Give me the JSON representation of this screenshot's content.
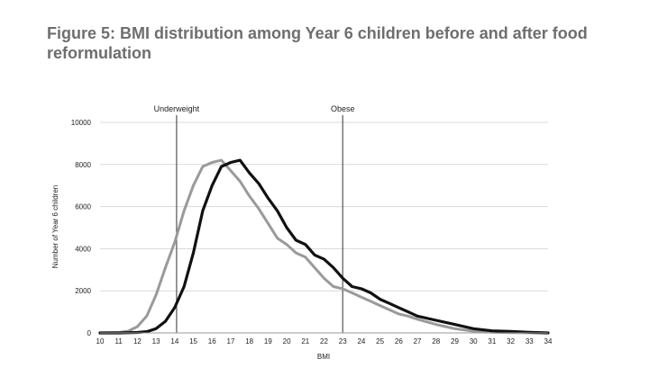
{
  "chart_data": {
    "type": "line",
    "title": "Figure 5: BMI distribution among Year 6 children before and after food reformulation",
    "xlabel": "BMI",
    "ylabel": "Number of Year 6 children",
    "xlim": [
      10,
      34
    ],
    "ylim": [
      0,
      10000
    ],
    "xticks": [
      "10",
      "11",
      "12",
      "13",
      "14",
      "15",
      "16",
      "17",
      "18",
      "19",
      "20",
      "21",
      "22",
      "23",
      "24",
      "25",
      "26",
      "27",
      "28",
      "29",
      "30",
      "31",
      "32",
      "33",
      "34"
    ],
    "yticks": [
      "0",
      "2000",
      "4000",
      "6000",
      "8000",
      "10000"
    ],
    "grid": true,
    "reference_lines": [
      {
        "label": "Underweight",
        "x": 14.1
      },
      {
        "label": "Obese",
        "x": 23.0
      }
    ],
    "series": [
      {
        "color": "#9a9a9a",
        "x": [
          10,
          11,
          11.5,
          12,
          12.5,
          13,
          13.5,
          14,
          14.5,
          15,
          15.5,
          16,
          16.5,
          17,
          17.5,
          18,
          18.5,
          19,
          19.5,
          20,
          20.5,
          21,
          21.5,
          22,
          22.5,
          23,
          23.5,
          24,
          24.5,
          25,
          25.5,
          26,
          26.5,
          27,
          28,
          29,
          30,
          31,
          32,
          33,
          34
        ],
        "values": [
          0,
          20,
          80,
          300,
          800,
          1800,
          3100,
          4300,
          5800,
          7000,
          7900,
          8100,
          8200,
          7700,
          7200,
          6500,
          5900,
          5200,
          4500,
          4200,
          3800,
          3600,
          3100,
          2600,
          2200,
          2100,
          1900,
          1700,
          1500,
          1300,
          1100,
          900,
          800,
          650,
          400,
          200,
          80,
          30,
          10,
          5,
          0
        ]
      },
      {
        "color": "#111111",
        "x": [
          10,
          11,
          12,
          12.5,
          13,
          13.5,
          14,
          14.5,
          15,
          15.5,
          16,
          16.5,
          17,
          17.5,
          18,
          18.5,
          19,
          19.5,
          20,
          20.5,
          21,
          21.5,
          22,
          22.5,
          23,
          23.5,
          24,
          24.5,
          25,
          25.5,
          26,
          26.5,
          27,
          28,
          29,
          30,
          31,
          32,
          33,
          34
        ],
        "values": [
          0,
          0,
          20,
          60,
          200,
          550,
          1200,
          2200,
          3800,
          5800,
          7000,
          7900,
          8100,
          8200,
          7600,
          7100,
          6400,
          5800,
          5000,
          4400,
          4200,
          3700,
          3500,
          3100,
          2600,
          2200,
          2100,
          1900,
          1600,
          1400,
          1200,
          1000,
          800,
          600,
          400,
          200,
          100,
          70,
          30,
          0
        ]
      }
    ]
  }
}
